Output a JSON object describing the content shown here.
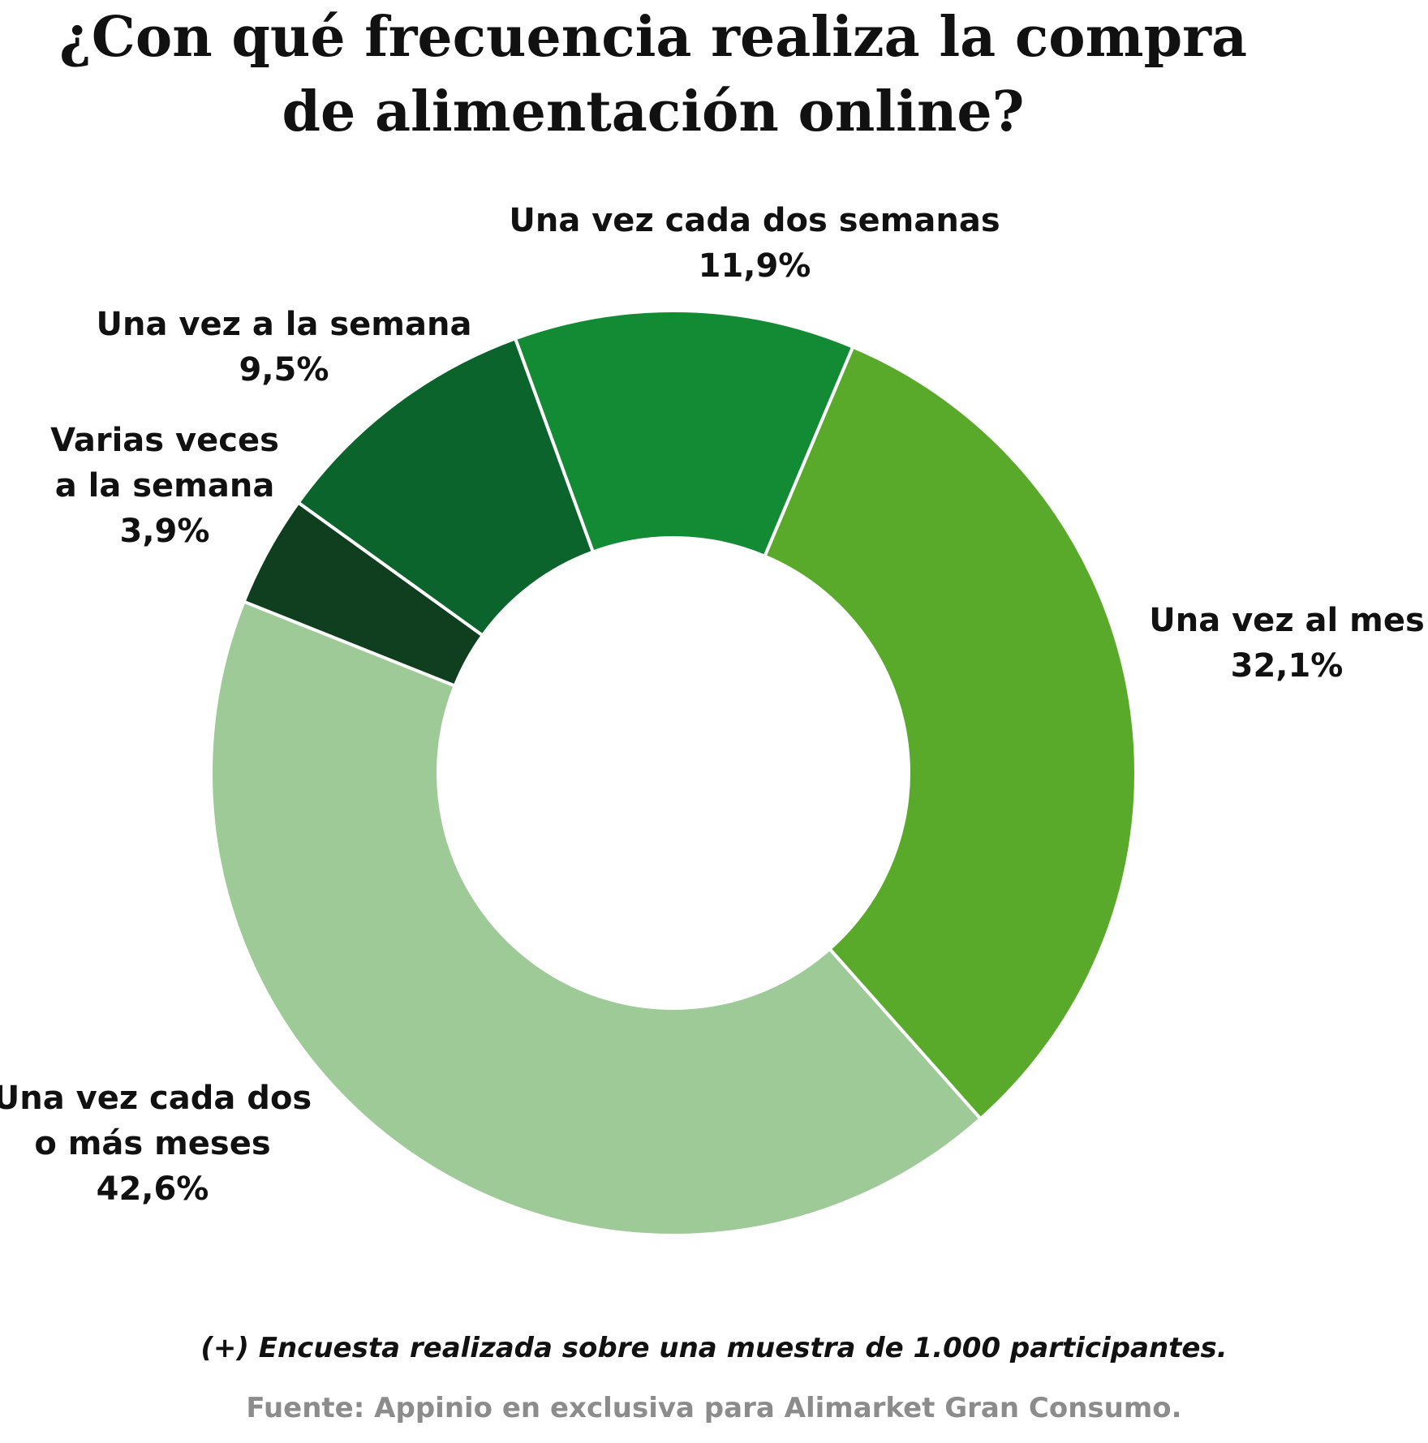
{
  "chart_data": {
    "type": "pie",
    "title_lines": [
      "¿Con qué frecuencia realiza la compra",
      "de alimentación online?"
    ],
    "slices": [
      {
        "label_lines": [
          "Una vez cada dos semanas"
        ],
        "value_label": "11,9%",
        "value": 11.9,
        "color": "#138a34"
      },
      {
        "label_lines": [
          "Una vez al mes"
        ],
        "value_label": "32,1%",
        "value": 32.1,
        "color": "#59aa2a"
      },
      {
        "label_lines": [
          "Una vez cada dos",
          "o más meses"
        ],
        "value_label": "42,6%",
        "value": 42.6,
        "color": "#9dca96"
      },
      {
        "label_lines": [
          "Varias veces",
          "a la semana"
        ],
        "value_label": "3,9%",
        "value": 3.9,
        "color": "#0f3f1e"
      },
      {
        "label_lines": [
          "Una vez a la semana"
        ],
        "value_label": "9,5%",
        "value": 9.5,
        "color": "#0b642b"
      }
    ]
  },
  "footnote": "(+) Encuesta realizada sobre una muestra de 1.000 participantes.",
  "source": "Fuente: Appinio en exclusiva para Alimarket Gran Consumo."
}
